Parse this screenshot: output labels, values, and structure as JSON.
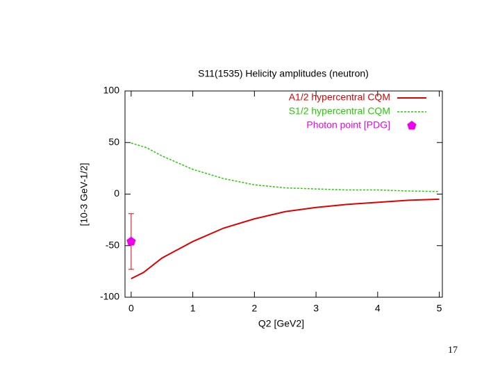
{
  "chart_data": {
    "type": "line",
    "title": "S11(1535) Helicity amplitudes (neutron)",
    "x_label": "Q2 [GeV2]",
    "y_label": "[10-3 GeV-1/2]",
    "xlim": [
      -0.1,
      5.05
    ],
    "xticks": [
      0,
      1,
      2,
      3,
      4,
      5
    ],
    "ylim": [
      -100,
      100
    ],
    "yticks": [
      -100,
      -50,
      0,
      50,
      100
    ],
    "series": [
      {
        "name": "A1/2 hypercentral CQM",
        "color": "#dd0000",
        "style": "solid",
        "x": [
          0,
          0.2,
          0.5,
          1,
          1.5,
          2,
          2.5,
          3,
          3.5,
          4,
          4.5,
          5
        ],
        "values": [
          -82,
          -76,
          -62,
          -46,
          -33,
          -24,
          -17,
          -13,
          -10,
          -8,
          -6,
          -5
        ]
      },
      {
        "name": "S1/2 hypercentral CQM",
        "color": "#22cc00",
        "style": "dashed",
        "x": [
          0,
          0.25,
          0.5,
          1,
          1.5,
          2,
          2.5,
          3,
          3.5,
          4,
          4.5,
          5
        ],
        "values": [
          49.5,
          45,
          37,
          24,
          15,
          9,
          6,
          5,
          4,
          4,
          3,
          2.5
        ]
      },
      {
        "name": "Photon point [PDG]",
        "color": "#ee00ee",
        "style": "point",
        "x": [
          0
        ],
        "values": [
          -46
        ],
        "errors": [
          27
        ]
      }
    ],
    "legend": "upper right"
  },
  "page_number": "17"
}
